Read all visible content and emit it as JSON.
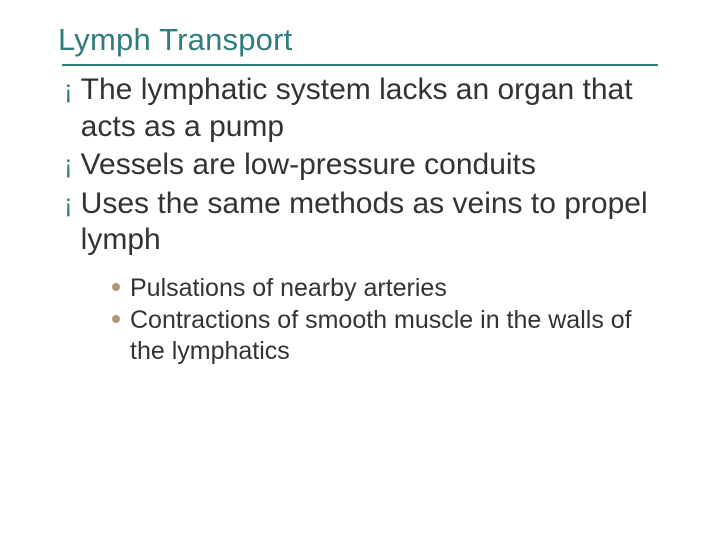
{
  "colors": {
    "title": "#2f7d7d",
    "line": "#2f7d7d",
    "body_text": "#333333",
    "l1_bullet": "#2f7d7d",
    "l2_bullet": "#b0976e",
    "background": "#ffffff"
  },
  "typography": {
    "title_fontsize": 31,
    "l1_fontsize": 30,
    "l1_bullet_fontsize": 26,
    "l2_fontsize": 25
  },
  "title": "Lymph Transport",
  "bullets_l1": [
    "The lymphatic system lacks an organ that acts as a pump",
    "Vessels are low-pressure conduits",
    "Uses the same methods as veins to propel lymph"
  ],
  "bullets_l2": [
    "Pulsations of nearby arteries",
    "Contractions of smooth muscle in the walls of the lymphatics"
  ]
}
